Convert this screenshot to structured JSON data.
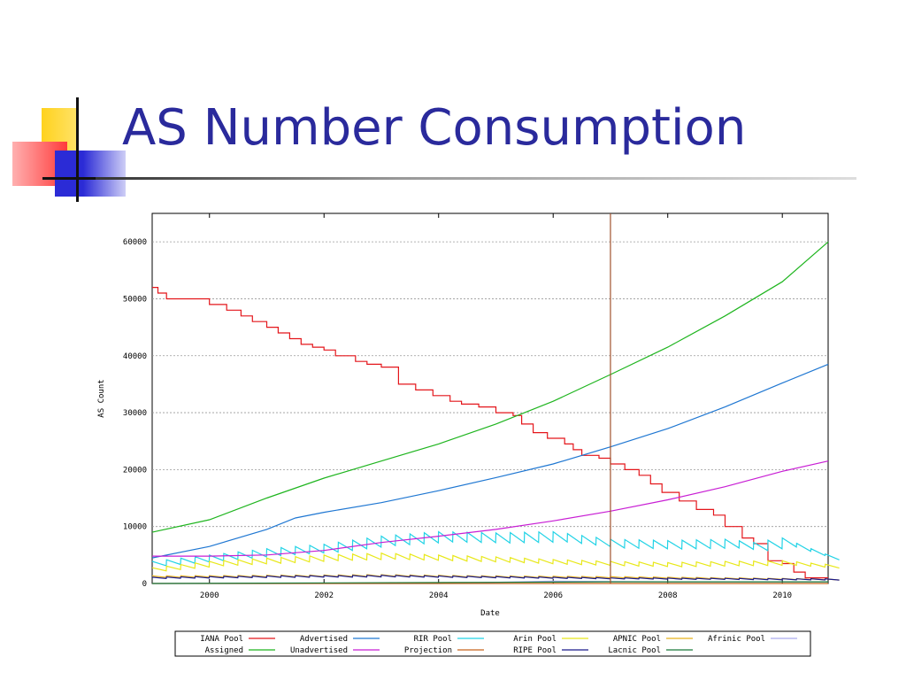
{
  "slide": {
    "title": "AS Number Consumption"
  },
  "colors": {
    "title": "#2a2a9c",
    "deco_yellow": "#ffd21e",
    "deco_red": "#ff3b3b",
    "deco_blue": "#2b2bd6"
  },
  "chart_data": {
    "type": "line",
    "title": "",
    "xlabel": "Date",
    "ylabel": "AS Count",
    "xlim": [
      1999.0,
      2010.8
    ],
    "ylim": [
      0,
      65000
    ],
    "xticks": [
      "2000",
      "2002",
      "2004",
      "2006",
      "2008",
      "2010"
    ],
    "yticks": [
      "0",
      "10000",
      "20000",
      "30000",
      "40000",
      "50000",
      "60000"
    ],
    "grid": true,
    "legend_position": "bottom",
    "vertical_marker": {
      "x": 2007.0,
      "color": "#a0522d"
    },
    "series": [
      {
        "name": "IANA Pool",
        "color": "#e4161b",
        "style": "step",
        "x": [
          1999.0,
          1999.1,
          1999.25,
          2000.0,
          2000.3,
          2000.55,
          2000.75,
          2001.0,
          2001.2,
          2001.4,
          2001.6,
          2001.8,
          2002.0,
          2002.2,
          2002.55,
          2002.75,
          2003.0,
          2003.3,
          2003.6,
          2003.9,
          2004.2,
          2004.4,
          2004.7,
          2005.0,
          2005.3,
          2005.45,
          2005.65,
          2005.9,
          2006.2,
          2006.35,
          2006.5,
          2006.8,
          2007.0,
          2007.25,
          2007.5,
          2007.7,
          2007.9,
          2008.2,
          2008.5,
          2008.8,
          2009.0,
          2009.3,
          2009.5,
          2009.75,
          2010.0,
          2010.2,
          2010.4
        ],
        "values": [
          52000,
          51000,
          50000,
          49000,
          48000,
          47000,
          46000,
          45000,
          44000,
          43000,
          42000,
          41500,
          41000,
          40000,
          39000,
          38500,
          38000,
          35000,
          34000,
          33000,
          32000,
          31500,
          31000,
          30000,
          29500,
          28000,
          26500,
          25500,
          24500,
          23500,
          22500,
          22000,
          21000,
          20000,
          19000,
          17500,
          16000,
          14500,
          13000,
          12000,
          10000,
          8000,
          7000,
          4000,
          3500,
          2000,
          1000
        ]
      },
      {
        "name": "Advertised",
        "color": "#1f77d2",
        "x": [
          1999.0,
          2000.0,
          2001.0,
          2001.5,
          2002.0,
          2003.0,
          2004.0,
          2005.0,
          2006.0,
          2007.0,
          2008.0,
          2009.0,
          2010.0,
          2010.8
        ],
        "values": [
          4500,
          6500,
          9500,
          11500,
          12500,
          14200,
          16300,
          18600,
          21000,
          24000,
          27200,
          31000,
          35200,
          38500
        ]
      },
      {
        "name": "RIR Pool",
        "color": "#22d3e6",
        "style": "sawtooth",
        "x": [
          1999.0,
          2000.0,
          2001.0,
          2002.0,
          2003.0,
          2004.0,
          2005.0,
          2006.0,
          2007.0,
          2008.0,
          2009.0,
          2009.5,
          2010.0,
          2010.8
        ],
        "values": [
          3500,
          4500,
          5500,
          6200,
          7500,
          8200,
          8000,
          8200,
          7000,
          6800,
          7000,
          6500,
          7200,
          4500
        ]
      },
      {
        "name": "Arin Pool",
        "color": "#e8e81a",
        "style": "sawtooth",
        "x": [
          1999.0,
          2000.0,
          2001.0,
          2002.0,
          2003.0,
          2004.0,
          2005.0,
          2006.0,
          2007.0,
          2008.0,
          2009.0,
          2010.0,
          2010.8
        ],
        "values": [
          2500,
          3500,
          4000,
          4500,
          4800,
          4500,
          4200,
          3800,
          3500,
          3300,
          3500,
          3600,
          3000
        ]
      },
      {
        "name": "APNIC Pool",
        "color": "#e8b21a",
        "style": "sawtooth",
        "x": [
          1999.0,
          2001.0,
          2003.0,
          2005.0,
          2007.0,
          2009.0,
          2010.8
        ],
        "values": [
          1200,
          1300,
          1400,
          1200,
          1100,
          900,
          700
        ]
      },
      {
        "name": "Afrinic Pool",
        "color": "#aaaaee",
        "x": [
          1999.0,
          2004.0,
          2006.0,
          2008.0,
          2010.8
        ],
        "values": [
          0,
          0,
          400,
          300,
          300
        ]
      },
      {
        "name": "Assigned",
        "color": "#1fb51f",
        "x": [
          1999.0,
          2000.0,
          2001.0,
          2002.0,
          2003.0,
          2004.0,
          2005.0,
          2006.0,
          2007.0,
          2008.0,
          2009.0,
          2010.0,
          2010.8
        ],
        "values": [
          9000,
          11200,
          15000,
          18500,
          21500,
          24500,
          28000,
          32000,
          36700,
          41500,
          47000,
          53000,
          60000
        ]
      },
      {
        "name": "Unadvertised",
        "color": "#c81ed4",
        "x": [
          1999.0,
          2000.0,
          2001.0,
          2002.0,
          2003.0,
          2004.0,
          2005.0,
          2006.0,
          2007.0,
          2008.0,
          2009.0,
          2010.0,
          2010.8
        ],
        "values": [
          4800,
          4800,
          5000,
          5800,
          7200,
          8300,
          9500,
          11000,
          12700,
          14700,
          17000,
          19700,
          21500
        ]
      },
      {
        "name": "Projection",
        "color": "#c8641e",
        "x": [
          1999.0,
          2010.8
        ],
        "values": [
          0,
          0
        ]
      },
      {
        "name": "RIPE Pool",
        "color": "#1a1a8c",
        "style": "sawtooth",
        "x": [
          1999.0,
          2001.0,
          2003.0,
          2005.0,
          2007.0,
          2009.0,
          2010.8
        ],
        "values": [
          1000,
          1200,
          1300,
          1100,
          900,
          800,
          700
        ]
      },
      {
        "name": "Lacnic Pool",
        "color": "#1a7a3a",
        "x": [
          1999.0,
          2005.0,
          2007.0,
          2010.8
        ],
        "values": [
          0,
          200,
          300,
          300
        ]
      }
    ],
    "legend": {
      "rows": [
        [
          "IANA Pool",
          "Advertised",
          "RIR Pool",
          "Arin Pool",
          "APNIC Pool",
          "Afrinic Pool"
        ],
        [
          "Assigned",
          "Unadvertised",
          "Projection",
          "RIPE Pool",
          "Lacnic Pool"
        ]
      ]
    }
  }
}
